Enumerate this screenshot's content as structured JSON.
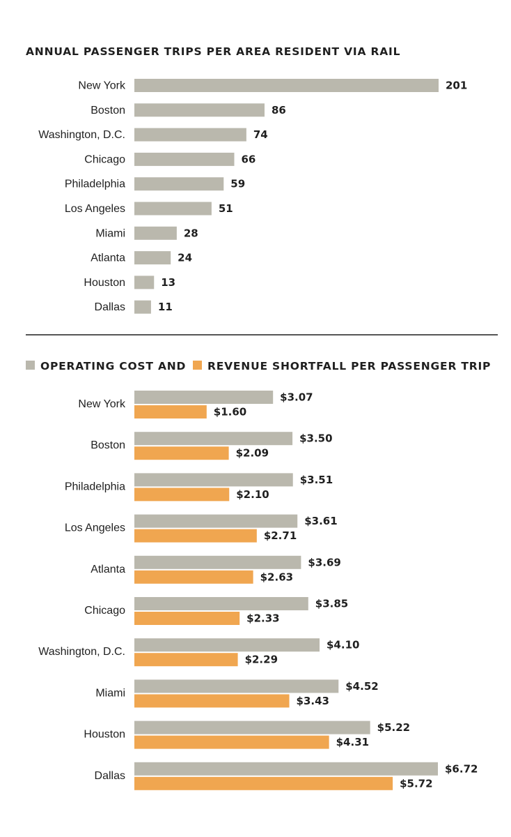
{
  "chart_data": [
    {
      "type": "bar",
      "title": "ANNUAL PASSENGER TRIPS PER AREA RESIDENT VIA RAIL",
      "categories": [
        "New York",
        "Boston",
        "Washington, D.C.",
        "Chicago",
        "Philadelphia",
        "Los Angeles",
        "Miami",
        "Atlanta",
        "Houston",
        "Dallas"
      ],
      "values": [
        201,
        86,
        74,
        66,
        59,
        51,
        28,
        24,
        13,
        11
      ],
      "value_labels": [
        "201",
        "86",
        "74",
        "66",
        "59",
        "51",
        "28",
        "24",
        "13",
        "11"
      ],
      "color": "#bab8ad",
      "xlim": [
        0,
        201
      ]
    },
    {
      "type": "bar",
      "legend": [
        "OPERATING COST AND",
        "REVENUE SHORTFALL PER PASSENGER TRIP"
      ],
      "categories": [
        "New York",
        "Boston",
        "Philadelphia",
        "Los Angeles",
        "Atlanta",
        "Chicago",
        "Washington, D.C.",
        "Miami",
        "Houston",
        "Dallas"
      ],
      "series": [
        {
          "name": "OPERATING COST AND",
          "color": "#bab8ad",
          "values": [
            3.07,
            3.5,
            3.51,
            3.61,
            3.69,
            3.85,
            4.1,
            4.52,
            5.22,
            6.72
          ],
          "value_labels": [
            "$3.07",
            "$3.50",
            "$3.51",
            "$3.61",
            "$3.69",
            "$3.85",
            "$4.10",
            "$4.52",
            "$5.22",
            "$6.72"
          ]
        },
        {
          "name": "REVENUE SHORTFALL PER PASSENGER TRIP",
          "color": "#f0a650",
          "values": [
            1.6,
            2.09,
            2.1,
            2.71,
            2.63,
            2.33,
            2.29,
            3.43,
            4.31,
            5.72
          ],
          "value_labels": [
            "$1.60",
            "$2.09",
            "$2.10",
            "$2.71",
            "$2.63",
            "$2.33",
            "$2.29",
            "$3.43",
            "$4.31",
            "$5.72"
          ]
        }
      ],
      "xlim": [
        0,
        6.72
      ]
    }
  ]
}
